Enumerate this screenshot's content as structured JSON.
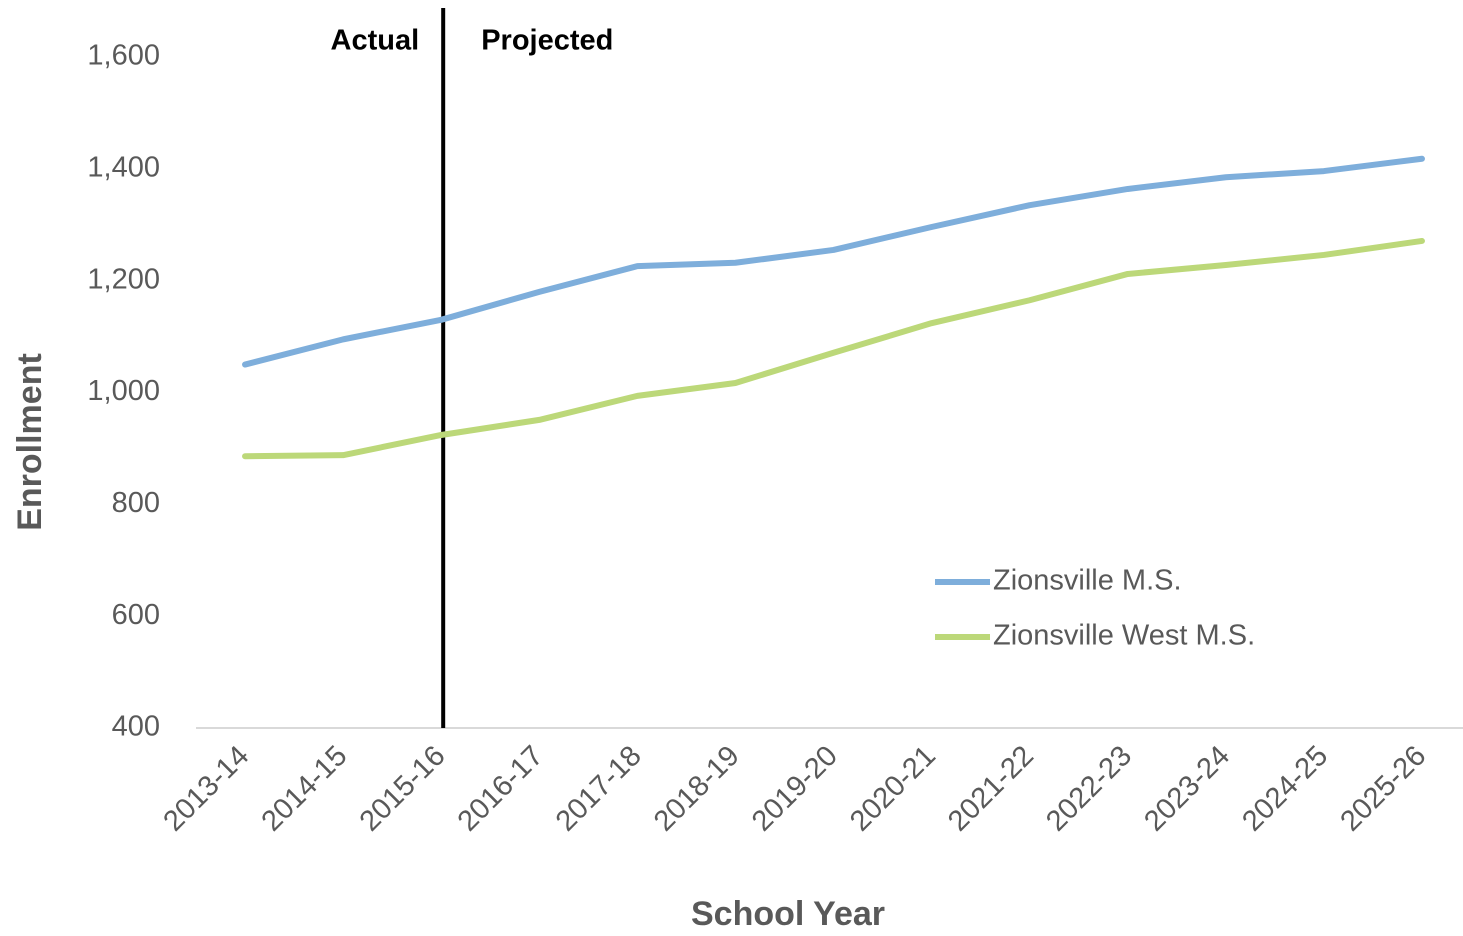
{
  "chart_data": {
    "type": "line",
    "x_label": "School Year",
    "y_label": "Enrollment",
    "categories": [
      "2013-14",
      "2014-15",
      "2015-16",
      "2016-17",
      "2017-18",
      "2018-19",
      "2019-20",
      "2020-21",
      "2021-22",
      "2022-23",
      "2023-24",
      "2024-25",
      "2025-26"
    ],
    "series": [
      {
        "name": "Zionsville M.S.",
        "color": "#7eaedb",
        "values": [
          1050,
          1095,
          1130,
          1180,
          1226,
          1232,
          1255,
          1296,
          1335,
          1364,
          1385,
          1396,
          1418
        ]
      },
      {
        "name": "Zionsville West M.S.",
        "color": "#bcd879",
        "values": [
          886,
          888,
          924,
          951,
          994,
          1017,
          1071,
          1124,
          1165,
          1212,
          1228,
          1246,
          1271
        ]
      }
    ],
    "annotations": [
      "Actual",
      "Projected"
    ],
    "divider": "2015-16",
    "ylim": [
      400,
      1600
    ],
    "yticks": [
      {
        "value": 400,
        "label": "400"
      },
      {
        "value": 600,
        "label": "600"
      },
      {
        "value": 800,
        "label": "800"
      },
      {
        "value": 1000,
        "label": "1,000"
      },
      {
        "value": 1200,
        "label": "1,200"
      },
      {
        "value": 1400,
        "label": "1,400"
      },
      {
        "value": 1600,
        "label": "1,600"
      }
    ],
    "grid": false,
    "legend": "right"
  }
}
